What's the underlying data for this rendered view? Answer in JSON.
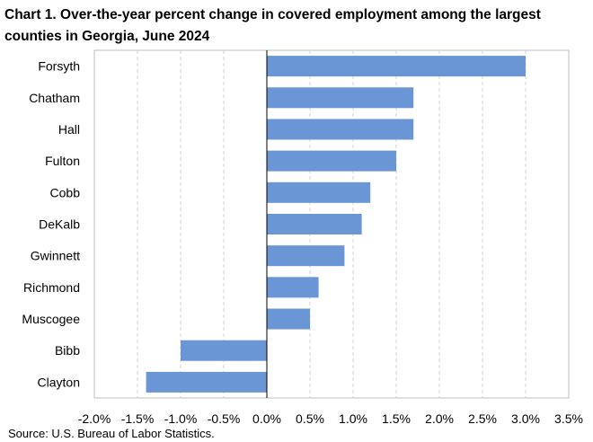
{
  "chart_data": {
    "type": "bar",
    "orientation": "horizontal",
    "title": "Chart 1. Over-the-year percent change in covered employment among the largest counties in Georgia, June 2024",
    "categories": [
      "Forsyth",
      "Chatham",
      "Hall",
      "Fulton",
      "Cobb",
      "DeKalb",
      "Gwinnett",
      "Richmond",
      "Muscogee",
      "Bibb",
      "Clayton"
    ],
    "values": [
      3.0,
      1.7,
      1.7,
      1.5,
      1.2,
      1.1,
      0.9,
      0.6,
      0.5,
      -1.0,
      -1.4
    ],
    "xlim": [
      -2.0,
      3.5
    ],
    "xticks": [
      -2.0,
      -1.5,
      -1.0,
      -0.5,
      0.0,
      0.5,
      1.0,
      1.5,
      2.0,
      2.5,
      3.0,
      3.5
    ],
    "xtick_labels": [
      "-2.0%",
      "-1.5%",
      "-1.0%",
      "-0.5%",
      "0.0%",
      "0.5%",
      "1.0%",
      "1.5%",
      "2.0%",
      "2.5%",
      "3.0%",
      "3.5%"
    ],
    "xlabel": "",
    "ylabel": "",
    "grid": "vertical-dashed",
    "legend": "none",
    "bar_color": "#6a96d6",
    "grid_color": "#d0d0d0",
    "axis_color": "#000000",
    "frame_color": "#bfbfbf"
  },
  "source": "Source: U.S. Bureau of Labor Statistics."
}
